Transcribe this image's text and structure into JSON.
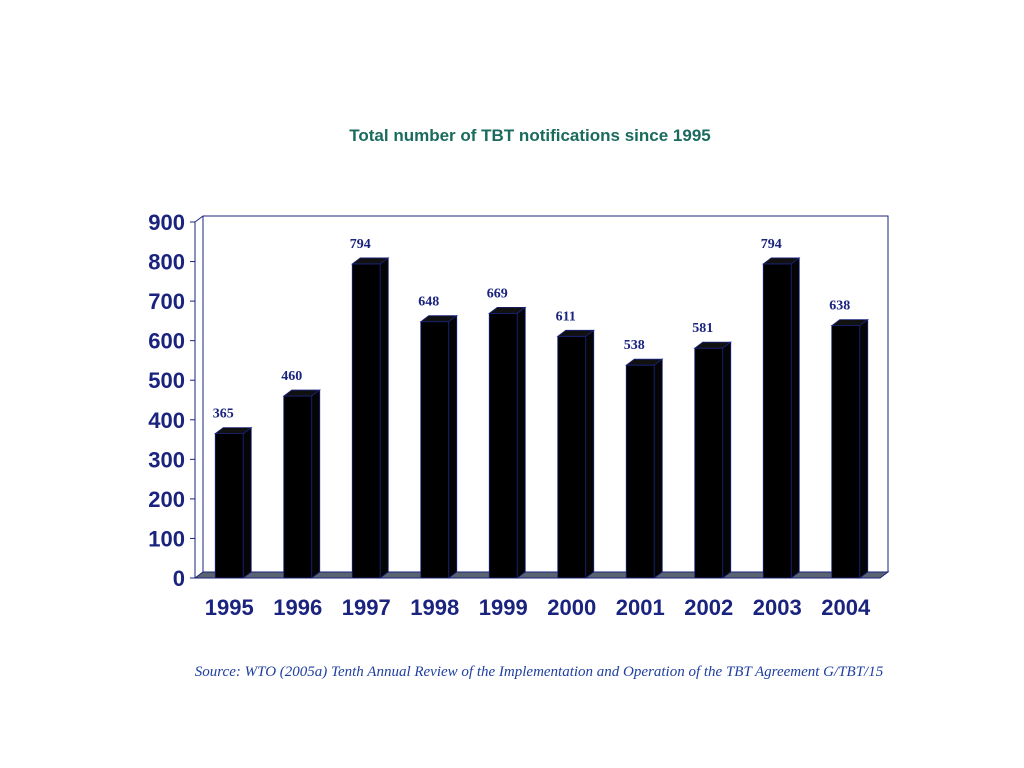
{
  "chart_data": {
    "type": "bar",
    "title": "Total number of TBT notifications since 1995",
    "categories": [
      "1995",
      "1996",
      "1997",
      "1998",
      "1999",
      "2000",
      "2001",
      "2002",
      "2003",
      "2004"
    ],
    "values": [
      365,
      460,
      794,
      648,
      669,
      611,
      538,
      581,
      794,
      638
    ],
    "xlabel": "",
    "ylabel": "",
    "ylim": [
      0,
      900
    ],
    "yticks": [
      0,
      100,
      200,
      300,
      400,
      500,
      600,
      700,
      800,
      900
    ],
    "grid": false,
    "legend": "none",
    "bar_style": "3d",
    "colors": {
      "bar": "#000000",
      "text": "#1a237e",
      "title": "#1a6b5e",
      "floor": "#5a6470"
    }
  },
  "source": "Source: WTO (2005a) Tenth Annual Review of the Implementation and Operation of the TBT Agreement G/TBT/15"
}
